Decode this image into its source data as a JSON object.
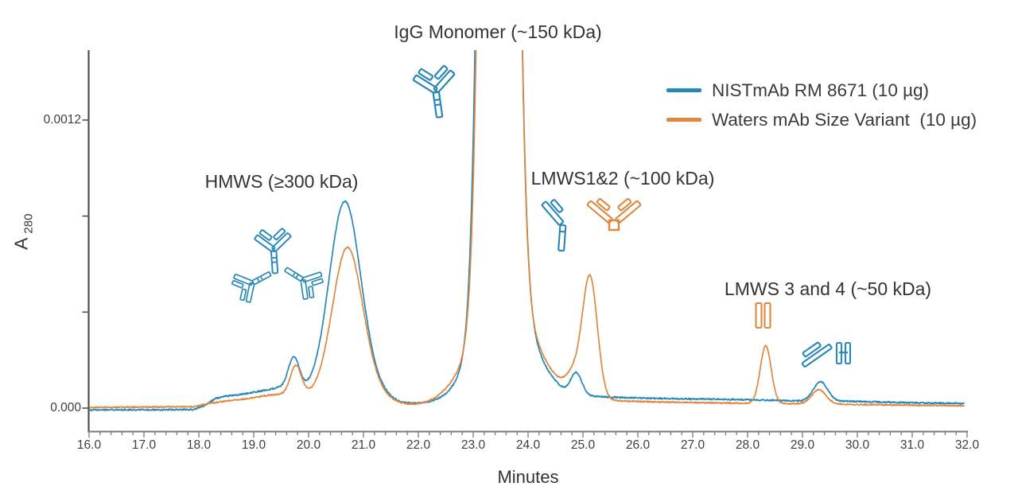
{
  "figure": {
    "y_axis_label": "A",
    "y_axis_sub": "280",
    "x_axis_label": "Minutes"
  },
  "annotations": {
    "monomer": "IgG Monomer (~150 kDa)",
    "hmws": "HMWS (≥300 kDa)",
    "lmws12": "LMWS1&2 (~100 kDa)",
    "lmws34": "LMWS 3 and 4 (~50 kDa)"
  },
  "icons": [
    "igg-monomer-antibody-icon-blue",
    "hmws-aggregate-antibody-cluster-icon-blue",
    "lmws12-fab-fc-fragment-icon-blue",
    "lmws12-f(ab)2-fragment-icon-orange",
    "lmws34-fragment-bars-icon-orange",
    "lmws34-fragment-icon-blue"
  ],
  "chart_data": {
    "type": "line",
    "title": "",
    "xlabel": "Minutes",
    "ylabel": "A280",
    "x_range": [
      16.0,
      32.0
    ],
    "x_tick_step": 1.0,
    "x_minor_tick_step": 0.2,
    "x_ticks": [
      "16.0",
      "17.0",
      "18.0",
      "19.0",
      "20.0",
      "21.0",
      "22.0",
      "23.0",
      "24.0",
      "25.0",
      "26.0",
      "27.0",
      "28.0",
      "29.0",
      "30.0",
      "31.0",
      "32.0"
    ],
    "y_ticks": [
      {
        "value": 0.0,
        "label": "0.000"
      },
      {
        "value": 0.0004,
        "label": ""
      },
      {
        "value": 0.0008,
        "label": ""
      },
      {
        "value": 0.0012,
        "label": "0.0012"
      }
    ],
    "y_top_clip_value": 0.00149,
    "grid": false,
    "legend_position": "upper-right",
    "series": [
      {
        "name": "NISTmAb RM 8671 (10 µg)",
        "color": "#2787B7",
        "noise_amplitude": 3e-06,
        "baseline": [
          [
            16.0,
            -8e-06
          ],
          [
            17.9,
            -6e-06
          ],
          [
            18.1,
            1e-05
          ],
          [
            18.3,
            4e-05
          ],
          [
            18.5,
            5e-05
          ],
          [
            18.8,
            5.8e-05
          ],
          [
            19.1,
            7e-05
          ],
          [
            19.45,
            8.5e-05
          ],
          [
            19.8,
            8e-05
          ],
          [
            20.1,
            6e-05
          ],
          [
            20.6,
            4e-05
          ],
          [
            21.2,
            2e-05
          ],
          [
            21.8,
            1.8e-05
          ],
          [
            22.3,
            2e-05
          ],
          [
            23.5,
            2e-05
          ],
          [
            24.5,
            5e-05
          ],
          [
            25.0,
            5e-05
          ],
          [
            25.6,
            4.5e-05
          ],
          [
            26.5,
            4e-05
          ],
          [
            28.0,
            3.5e-05
          ],
          [
            29.0,
            3e-05
          ],
          [
            30.0,
            2.8e-05
          ],
          [
            31.0,
            2.2e-05
          ],
          [
            32.0,
            2e-05
          ]
        ],
        "peaks": [
          {
            "label": "HMWS minor",
            "center": 19.73,
            "height": 0.00013,
            "sigma": 0.1
          },
          {
            "label": "HMWS (≥300 kDa)",
            "center": 20.65,
            "height": 0.00079,
            "sigma": 0.28
          },
          {
            "label": "HMWS tail",
            "center": 21.05,
            "height": 8e-05,
            "sigma": 0.3
          },
          {
            "label": "IgG Monomer (~150 kDa), off-scale",
            "center": 23.46,
            "height": 0.012,
            "sigma": 0.2
          },
          {
            "label": "monomer base",
            "center": 23.55,
            "height": 0.0005,
            "sigma": 0.47
          },
          {
            "label": "LMWS1 trace",
            "center": 24.88,
            "height": 9e-05,
            "sigma": 0.1
          },
          {
            "label": "LMWS 3/4 trace",
            "center": 29.33,
            "height": 8e-05,
            "sigma": 0.13
          }
        ]
      },
      {
        "name": "Waters mAb Size Variant  (10 µg)",
        "color": "#E0873E",
        "noise_amplitude": 2.6e-06,
        "baseline": [
          [
            16.0,
            3e-06
          ],
          [
            17.9,
            6e-06
          ],
          [
            18.2,
            2e-05
          ],
          [
            18.5,
            3e-05
          ],
          [
            18.9,
            4e-05
          ],
          [
            19.3,
            5.5e-05
          ],
          [
            19.7,
            6e-05
          ],
          [
            20.1,
            5e-05
          ],
          [
            20.7,
            3.5e-05
          ],
          [
            21.3,
            1.5e-05
          ],
          [
            22.0,
            1e-05
          ],
          [
            22.5,
            1.2e-05
          ],
          [
            23.5,
            1.5e-05
          ],
          [
            24.5,
            3e-05
          ],
          [
            25.6,
            3e-05
          ],
          [
            26.5,
            2.5e-05
          ],
          [
            28.0,
            2e-05
          ],
          [
            29.0,
            1.8e-05
          ],
          [
            30.0,
            1.5e-05
          ],
          [
            31.0,
            1.2e-05
          ],
          [
            32.0,
            1e-05
          ]
        ],
        "peaks": [
          {
            "label": "HMWS minor",
            "center": 19.77,
            "height": 0.00012,
            "sigma": 0.1
          },
          {
            "label": "HMWS (≥300 kDa)",
            "center": 20.7,
            "height": 0.00061,
            "sigma": 0.27
          },
          {
            "label": "HMWS tail",
            "center": 21.1,
            "height": 6e-05,
            "sigma": 0.3
          },
          {
            "label": "IgG Monomer (~150 kDa), off-scale",
            "center": 23.47,
            "height": 0.012,
            "sigma": 0.195
          },
          {
            "label": "monomer base",
            "center": 23.56,
            "height": 0.00045,
            "sigma": 0.55
          },
          {
            "label": "LMWS1 shoulder",
            "center": 24.85,
            "height": 9e-05,
            "sigma": 0.15
          },
          {
            "label": "LMWS1&2 (~100 kDa)",
            "center": 25.13,
            "height": 0.0005,
            "sigma": 0.135
          },
          {
            "label": "LMWS 3 and 4 (~50 kDa)",
            "center": 28.33,
            "height": 0.00024,
            "sigma": 0.1
          },
          {
            "label": "LMWS 3/4 minor",
            "center": 29.3,
            "height": 6e-05,
            "sigma": 0.13
          }
        ]
      }
    ]
  }
}
